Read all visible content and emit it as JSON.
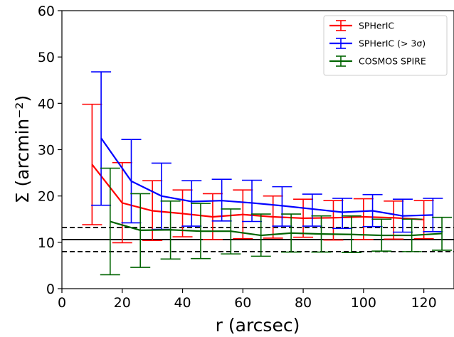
{
  "chart_data": {
    "type": "line",
    "xlabel": "r (arcsec)",
    "ylabel": "Σ (arcmin⁻²)",
    "xlim": [
      0,
      130
    ],
    "ylim": [
      0,
      60
    ],
    "xticks": [
      0,
      20,
      40,
      60,
      80,
      100,
      120
    ],
    "yticks": [
      0,
      10,
      20,
      30,
      40,
      50,
      60
    ],
    "legend_position": "top-right",
    "grid": false,
    "series": [
      {
        "name": "SPHerIC",
        "color": "#ff0000",
        "x": [
          10,
          20,
          30,
          40,
          50,
          60,
          70,
          80,
          90,
          100,
          110,
          120
        ],
        "y": [
          26.8,
          18.5,
          16.8,
          16.2,
          15.5,
          16.0,
          15.5,
          15.2,
          15.3,
          15.5,
          15.3,
          14.9
        ],
        "yerr_low": [
          13.8,
          9.9,
          10.4,
          11.2,
          10.6,
          10.8,
          10.9,
          11.1,
          10.5,
          10.6,
          10.7,
          10.8
        ],
        "yerr_high": [
          39.8,
          27.2,
          23.3,
          21.3,
          20.5,
          21.3,
          20.0,
          19.3,
          19.0,
          19.4,
          18.9,
          19.0
        ]
      },
      {
        "name": "SPHerIC (> 3σ)",
        "color": "#0000ff",
        "x": [
          13,
          23,
          33,
          43,
          53,
          63,
          73,
          83,
          93,
          103,
          113,
          123
        ],
        "y": [
          32.5,
          23.2,
          20.0,
          18.8,
          19.0,
          18.5,
          17.9,
          17.2,
          16.5,
          16.8,
          15.7,
          15.9
        ],
        "yerr_low": [
          18.0,
          14.2,
          12.8,
          13.5,
          14.6,
          14.5,
          13.5,
          13.5,
          13.0,
          13.4,
          12.2,
          12.3
        ],
        "yerr_high": [
          46.8,
          32.2,
          27.1,
          23.3,
          23.6,
          23.4,
          22.0,
          20.4,
          19.5,
          20.3,
          19.3,
          19.5
        ]
      },
      {
        "name": "COSMOS SPIRE",
        "color": "#006400",
        "x": [
          16,
          26,
          36,
          46,
          56,
          66,
          76,
          86,
          96,
          106,
          116,
          126
        ],
        "y": [
          14.5,
          12.6,
          12.7,
          12.4,
          12.4,
          11.5,
          12.0,
          11.8,
          11.7,
          11.5,
          11.5,
          11.9
        ],
        "yerr_low": [
          3.0,
          4.6,
          6.4,
          6.5,
          7.5,
          7.0,
          7.9,
          7.9,
          7.8,
          8.1,
          8.0,
          8.3
        ],
        "yerr_high": [
          26.0,
          20.5,
          18.9,
          18.4,
          17.2,
          16.1,
          16.1,
          15.7,
          15.7,
          15.0,
          15.0,
          15.4
        ]
      }
    ],
    "reference_lines": [
      {
        "y": 10.6,
        "style": "solid",
        "color": "#000000"
      },
      {
        "y": 13.2,
        "style": "dashed",
        "color": "#000000"
      },
      {
        "y": 8.0,
        "style": "dashed",
        "color": "#000000"
      }
    ]
  }
}
